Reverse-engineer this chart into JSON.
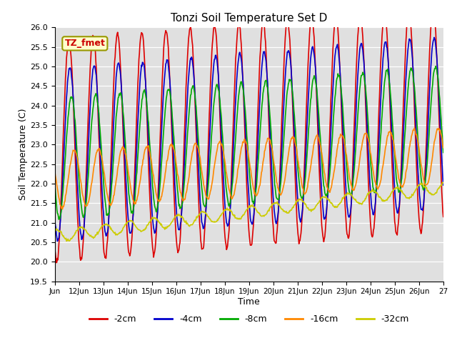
{
  "title": "Tonzi Soil Temperature Set D",
  "xlabel": "Time",
  "ylabel": "Soil Temperature (C)",
  "ylim": [
    19.5,
    26.0
  ],
  "series": {
    "-2cm": {
      "color": "#dd0000",
      "linewidth": 1.2
    },
    "-4cm": {
      "color": "#0000cc",
      "linewidth": 1.2
    },
    "-8cm": {
      "color": "#00aa00",
      "linewidth": 1.2
    },
    "-16cm": {
      "color": "#ff8800",
      "linewidth": 1.2
    },
    "-32cm": {
      "color": "#cccc00",
      "linewidth": 1.2
    }
  },
  "bg_color": "#e0e0e0",
  "annotation_box": {
    "facecolor": "#ffffcc",
    "edgecolor": "#999900"
  },
  "annotation_text": "TZ_fmet",
  "annotation_text_color": "#cc0000",
  "n_days": 16,
  "start_day": 11,
  "yticks": [
    19.5,
    20.0,
    20.5,
    21.0,
    21.5,
    22.0,
    22.5,
    23.0,
    23.5,
    24.0,
    24.5,
    25.0,
    25.5,
    26.0
  ]
}
